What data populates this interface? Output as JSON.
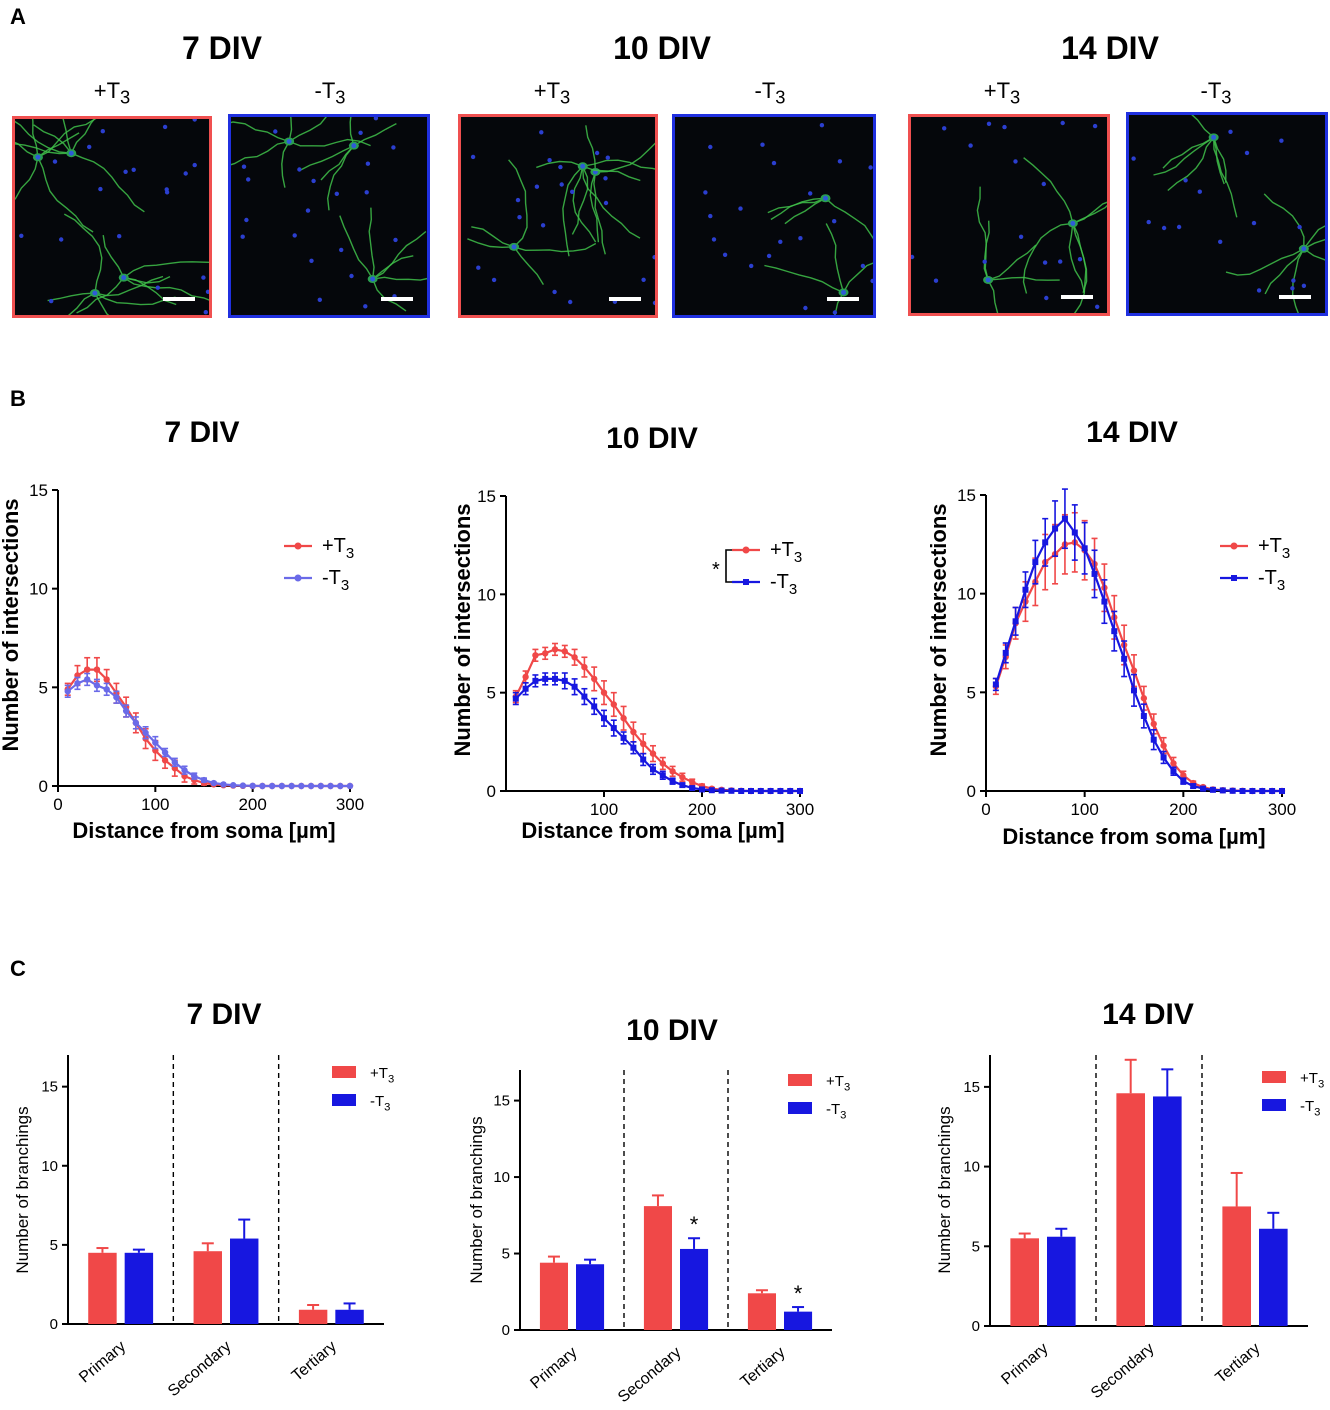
{
  "panel_a": {
    "letter": "A",
    "groups": [
      {
        "title": "7 DIV",
        "images": [
          {
            "label": "+T",
            "sub": "3",
            "border_color": "#f05050"
          },
          {
            "label": "-T",
            "sub": "3",
            "border_color": "#2030e0"
          }
        ]
      },
      {
        "title": "10 DIV",
        "images": [
          {
            "label": "+T",
            "sub": "3",
            "border_color": "#f05050"
          },
          {
            "label": "-T",
            "sub": "3",
            "border_color": "#2030e0"
          }
        ]
      },
      {
        "title": "14 DIV",
        "images": [
          {
            "label": "+T",
            "sub": "3",
            "border_color": "#f05050"
          },
          {
            "label": "-T",
            "sub": "3",
            "border_color": "#2030e0"
          }
        ]
      }
    ]
  },
  "panel_b": {
    "letter": "B"
  },
  "panel_c": {
    "letter": "C"
  },
  "colors": {
    "plus": "#f04848",
    "minus_light": "#6a6ae8",
    "minus": "#1717e0"
  },
  "chart_data": [
    {
      "type": "line",
      "title": "7 DIV",
      "xlabel": "Distance from soma [µm]",
      "ylabel": "Number of intersections",
      "xlim": [
        0,
        300
      ],
      "ylim": [
        0,
        15
      ],
      "xticks": [
        0,
        100,
        200,
        300
      ],
      "yticks": [
        0,
        5,
        10,
        15
      ],
      "legend": [
        {
          "label": "+T",
          "sub": "3"
        },
        {
          "label": "-T",
          "sub": "3"
        }
      ],
      "significance": "",
      "x": [
        10,
        20,
        30,
        40,
        50,
        60,
        70,
        80,
        90,
        100,
        110,
        120,
        130,
        140,
        150,
        160,
        170,
        180,
        190,
        200,
        210,
        220,
        230,
        240,
        250,
        260,
        270,
        280,
        290,
        300
      ],
      "series": [
        {
          "name": "+T3",
          "color": "#f04848",
          "marker": "circle",
          "values": [
            4.9,
            5.6,
            5.9,
            5.9,
            5.4,
            4.7,
            4.0,
            3.2,
            2.4,
            1.8,
            1.3,
            0.9,
            0.5,
            0.3,
            0.15,
            0.08,
            0.04,
            0.02,
            0.01,
            0,
            0,
            0,
            0,
            0,
            0,
            0,
            0,
            0,
            0,
            0
          ],
          "errors": [
            0.3,
            0.5,
            0.6,
            0.6,
            0.5,
            0.5,
            0.5,
            0.5,
            0.5,
            0.5,
            0.4,
            0.4,
            0.3,
            0.2,
            0.1,
            0.05,
            0.03,
            0.02,
            0.01,
            0,
            0,
            0,
            0,
            0,
            0,
            0,
            0,
            0,
            0,
            0
          ]
        },
        {
          "name": "-T3",
          "color": "#6a6ae8",
          "marker": "circle",
          "values": [
            4.8,
            5.2,
            5.4,
            5.1,
            4.9,
            4.5,
            3.8,
            3.2,
            2.7,
            2.2,
            1.7,
            1.2,
            0.8,
            0.5,
            0.3,
            0.15,
            0.08,
            0.04,
            0.02,
            0.01,
            0,
            0,
            0,
            0,
            0,
            0,
            0,
            0,
            0,
            0
          ],
          "errors": [
            0.3,
            0.3,
            0.3,
            0.3,
            0.3,
            0.3,
            0.3,
            0.3,
            0.3,
            0.3,
            0.2,
            0.2,
            0.2,
            0.15,
            0.1,
            0.05,
            0.03,
            0.02,
            0.01,
            0,
            0,
            0,
            0,
            0,
            0,
            0,
            0,
            0,
            0,
            0
          ]
        }
      ]
    },
    {
      "type": "line",
      "title": "10 DIV",
      "xlabel": "Distance from soma [µm]",
      "ylabel": "Number of intersections",
      "xlim": [
        0,
        300
      ],
      "ylim": [
        0,
        15
      ],
      "xticks": [
        100,
        200,
        300
      ],
      "yticks": [
        0,
        5,
        10,
        15
      ],
      "legend": [
        {
          "label": "+T",
          "sub": "3"
        },
        {
          "label": "-T",
          "sub": "3"
        }
      ],
      "significance": "*",
      "x": [
        10,
        20,
        30,
        40,
        50,
        60,
        70,
        80,
        90,
        100,
        110,
        120,
        130,
        140,
        150,
        160,
        170,
        180,
        190,
        200,
        210,
        220,
        230,
        240,
        250,
        260,
        270,
        280,
        290,
        300
      ],
      "series": [
        {
          "name": "+T3",
          "color": "#f04848",
          "marker": "circle",
          "values": [
            4.8,
            5.8,
            6.9,
            7.0,
            7.2,
            7.1,
            6.8,
            6.3,
            5.7,
            5.0,
            4.4,
            3.7,
            3.0,
            2.4,
            1.9,
            1.4,
            1.0,
            0.7,
            0.45,
            0.25,
            0.12,
            0.06,
            0.03,
            0.01,
            0,
            0,
            0,
            0,
            0,
            0
          ],
          "errors": [
            0.3,
            0.3,
            0.3,
            0.3,
            0.3,
            0.3,
            0.4,
            0.5,
            0.6,
            0.6,
            0.6,
            0.6,
            0.5,
            0.5,
            0.4,
            0.3,
            0.25,
            0.2,
            0.15,
            0.1,
            0.06,
            0.03,
            0.02,
            0.01,
            0,
            0,
            0,
            0,
            0,
            0
          ]
        },
        {
          "name": "-T3",
          "color": "#1717e0",
          "marker": "square",
          "values": [
            4.7,
            5.2,
            5.6,
            5.7,
            5.7,
            5.6,
            5.3,
            4.8,
            4.3,
            3.7,
            3.2,
            2.7,
            2.2,
            1.6,
            1.1,
            0.8,
            0.5,
            0.3,
            0.15,
            0.08,
            0.04,
            0.02,
            0.01,
            0,
            0,
            0,
            0,
            0,
            0,
            0
          ],
          "errors": [
            0.3,
            0.3,
            0.3,
            0.3,
            0.3,
            0.4,
            0.4,
            0.4,
            0.4,
            0.4,
            0.4,
            0.3,
            0.3,
            0.3,
            0.25,
            0.2,
            0.15,
            0.1,
            0.06,
            0.04,
            0.02,
            0.01,
            0.01,
            0,
            0,
            0,
            0,
            0,
            0,
            0
          ]
        }
      ]
    },
    {
      "type": "line",
      "title": "14 DIV",
      "xlabel": "Distance from soma [µm]",
      "ylabel": "Number of intersections",
      "xlim": [
        0,
        300
      ],
      "ylim": [
        0,
        15
      ],
      "xticks": [
        0,
        100,
        200,
        300
      ],
      "yticks": [
        0,
        5,
        10,
        15
      ],
      "legend": [
        {
          "label": "+T",
          "sub": "3"
        },
        {
          "label": "-T",
          "sub": "3"
        }
      ],
      "significance": "",
      "x": [
        10,
        20,
        30,
        40,
        50,
        60,
        70,
        80,
        90,
        100,
        110,
        120,
        130,
        140,
        150,
        160,
        170,
        180,
        190,
        200,
        210,
        220,
        230,
        240,
        250,
        260,
        270,
        280,
        290,
        300
      ],
      "series": [
        {
          "name": "+T3",
          "color": "#f04848",
          "marker": "circle",
          "values": [
            5.3,
            6.8,
            8.5,
            9.6,
            10.6,
            11.6,
            12.0,
            12.5,
            12.6,
            12.2,
            11.5,
            10.3,
            8.8,
            7.4,
            6.1,
            4.7,
            3.4,
            2.3,
            1.4,
            0.8,
            0.4,
            0.2,
            0.08,
            0.04,
            0.02,
            0.01,
            0,
            0,
            0,
            0
          ],
          "errors": [
            0.4,
            0.6,
            0.8,
            1.0,
            1.2,
            1.4,
            1.5,
            1.5,
            1.5,
            1.5,
            1.3,
            1.2,
            1.1,
            1.0,
            0.8,
            0.6,
            0.5,
            0.4,
            0.3,
            0.2,
            0.1,
            0.05,
            0.03,
            0.02,
            0.01,
            0,
            0,
            0,
            0,
            0
          ]
        },
        {
          "name": "-T3",
          "color": "#1717e0",
          "marker": "square",
          "values": [
            5.4,
            7.0,
            8.6,
            10.2,
            11.6,
            12.6,
            13.3,
            13.8,
            13.1,
            12.3,
            11.0,
            9.6,
            8.1,
            6.7,
            5.1,
            3.8,
            2.6,
            1.7,
            1.0,
            0.5,
            0.25,
            0.12,
            0.06,
            0.03,
            0.01,
            0,
            0,
            0,
            0,
            0
          ],
          "errors": [
            0.3,
            0.5,
            0.7,
            0.9,
            1.1,
            1.2,
            1.4,
            1.5,
            1.4,
            1.3,
            1.2,
            1.1,
            1.0,
            0.9,
            0.8,
            0.6,
            0.5,
            0.3,
            0.2,
            0.15,
            0.1,
            0.05,
            0.03,
            0.02,
            0.01,
            0,
            0,
            0,
            0,
            0
          ]
        }
      ]
    },
    {
      "type": "bar",
      "title": "7 DIV",
      "ylabel": "Number of branchings",
      "categories": [
        "Primary",
        "Secondary",
        "Tertiary"
      ],
      "ylim": [
        0,
        17
      ],
      "yticks": [
        0,
        5,
        10,
        15
      ],
      "legend": [
        {
          "label": "+T",
          "sub": "3"
        },
        {
          "label": "-T",
          "sub": "3"
        }
      ],
      "series": [
        {
          "name": "+T3",
          "color": "#f04848",
          "values": [
            4.5,
            4.6,
            0.9
          ],
          "errors": [
            0.3,
            0.5,
            0.3
          ],
          "sig": [
            "",
            "",
            ""
          ]
        },
        {
          "name": "-T3",
          "color": "#1717e0",
          "values": [
            4.5,
            5.4,
            0.9
          ],
          "errors": [
            0.2,
            1.2,
            0.4
          ],
          "sig": [
            "",
            "",
            ""
          ]
        }
      ]
    },
    {
      "type": "bar",
      "title": "10 DIV",
      "ylabel": "Number of branchings",
      "categories": [
        "Primary",
        "Secondary",
        "Tertiary"
      ],
      "ylim": [
        0,
        17
      ],
      "yticks": [
        0,
        5,
        10,
        15
      ],
      "legend": [
        {
          "label": "+T",
          "sub": "3"
        },
        {
          "label": "-T",
          "sub": "3"
        }
      ],
      "series": [
        {
          "name": "+T3",
          "color": "#f04848",
          "values": [
            4.4,
            8.1,
            2.4
          ],
          "errors": [
            0.4,
            0.7,
            0.2
          ],
          "sig": [
            "",
            "",
            ""
          ]
        },
        {
          "name": "-T3",
          "color": "#1717e0",
          "values": [
            4.3,
            5.3,
            1.2
          ],
          "errors": [
            0.3,
            0.7,
            0.3
          ],
          "sig": [
            "",
            "*",
            "*"
          ]
        }
      ]
    },
    {
      "type": "bar",
      "title": "14 DIV",
      "ylabel": "Number of branchings",
      "categories": [
        "Primary",
        "Secondary",
        "Tertiary"
      ],
      "ylim": [
        0,
        17
      ],
      "yticks": [
        0,
        5,
        10,
        15
      ],
      "legend": [
        {
          "label": "+T",
          "sub": "3"
        },
        {
          "label": "-T",
          "sub": "3"
        }
      ],
      "series": [
        {
          "name": "+T3",
          "color": "#f04848",
          "values": [
            5.5,
            14.6,
            7.5
          ],
          "errors": [
            0.3,
            2.1,
            2.1
          ],
          "sig": [
            "",
            "",
            ""
          ]
        },
        {
          "name": "-T3",
          "color": "#1717e0",
          "values": [
            5.6,
            14.4,
            6.1
          ],
          "errors": [
            0.5,
            1.7,
            1.0
          ],
          "sig": [
            "",
            "",
            ""
          ]
        }
      ]
    }
  ]
}
